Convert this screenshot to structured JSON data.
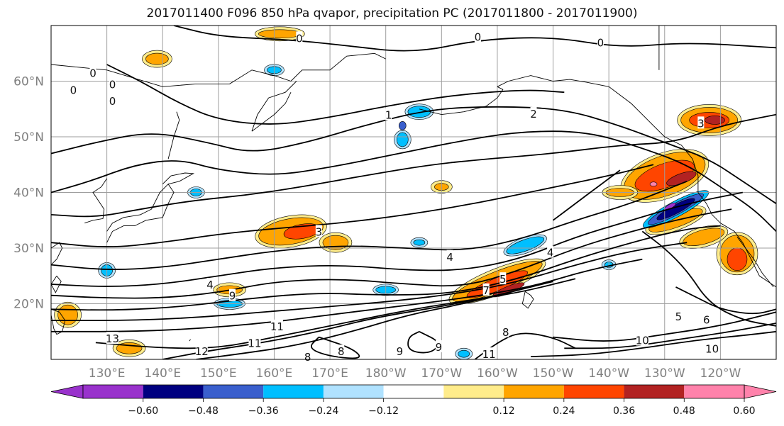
{
  "title": "2017011400 F096 850 hPa qvapor, precipitation PC (2017011800 - 2017011900)",
  "map": {
    "lat_labels": [
      "60°N",
      "50°N",
      "40°N",
      "30°N",
      "20°N"
    ],
    "lon_labels": [
      "130°E",
      "140°E",
      "150°E",
      "160°E",
      "170°E",
      "180°W",
      "170°W",
      "160°W",
      "150°W",
      "140°W",
      "130°W",
      "120°W"
    ],
    "axis_label_color": "#808080",
    "grid_color": "#9e9e9e",
    "contour_color": "#000000",
    "contour_labels": [
      {
        "text": "0",
        "lon": 164.5,
        "lat": 67.8
      },
      {
        "text": "0",
        "lon": 196.5,
        "lat": 68.0
      },
      {
        "text": "0",
        "lon": 124,
        "lat": 58.5
      },
      {
        "text": "0",
        "lon": 127.5,
        "lat": 61.5
      },
      {
        "text": "0",
        "lon": 131,
        "lat": 56.5
      },
      {
        "text": "0",
        "lon": 131,
        "lat": 59.5
      },
      {
        "text": "0",
        "lon": 218.5,
        "lat": 67.0
      },
      {
        "text": "1",
        "lon": 180.5,
        "lat": 54.0
      },
      {
        "text": "2",
        "lon": 206.5,
        "lat": 54.2
      },
      {
        "text": "3",
        "lon": 236.5,
        "lat": 52.5
      },
      {
        "text": "3",
        "lon": 168,
        "lat": 33.0
      },
      {
        "text": "4",
        "lon": 148.5,
        "lat": 23.5
      },
      {
        "text": "4",
        "lon": 191.5,
        "lat": 28.5
      },
      {
        "text": "4",
        "lon": 209.5,
        "lat": 29.3
      },
      {
        "text": "5",
        "lon": 201,
        "lat": 24.5
      },
      {
        "text": "5",
        "lon": 232.5,
        "lat": 17.8
      },
      {
        "text": "6",
        "lon": 237.5,
        "lat": 17.2
      },
      {
        "text": "7",
        "lon": 198,
        "lat": 22.5
      },
      {
        "text": "8",
        "lon": 201.5,
        "lat": 15.0
      },
      {
        "text": "8",
        "lon": 172,
        "lat": 11.5
      },
      {
        "text": "8",
        "lon": 166,
        "lat": 10.5
      },
      {
        "text": "9",
        "lon": 152.5,
        "lat": 21.5
      },
      {
        "text": "9",
        "lon": 189.5,
        "lat": 12.3
      },
      {
        "text": "9",
        "lon": 182.5,
        "lat": 11.5
      },
      {
        "text": "10",
        "lon": 226,
        "lat": 13.5
      },
      {
        "text": "10",
        "lon": 238.5,
        "lat": 12.0
      },
      {
        "text": "11",
        "lon": 160.5,
        "lat": 16.0
      },
      {
        "text": "11",
        "lon": 156.5,
        "lat": 13.0
      },
      {
        "text": "11",
        "lon": 198.5,
        "lat": 11.0
      },
      {
        "text": "12",
        "lon": 147,
        "lat": 11.5
      },
      {
        "text": "13",
        "lon": 131,
        "lat": 13.8
      }
    ]
  },
  "colorbar": {
    "colors": [
      "#9932CC",
      "#000080",
      "#3A5FCD",
      "#00BFFF",
      "#B0E2FF",
      "#FFFFFF",
      "#FFEC8B",
      "#FFA500",
      "#FF4500",
      "#B22222",
      "#FF82AB"
    ],
    "tick_labels": [
      "−0.60",
      "−0.48",
      "−0.36",
      "−0.24",
      "−0.12",
      "0.12",
      "0.24",
      "0.36",
      "0.48",
      "0.60"
    ]
  }
}
